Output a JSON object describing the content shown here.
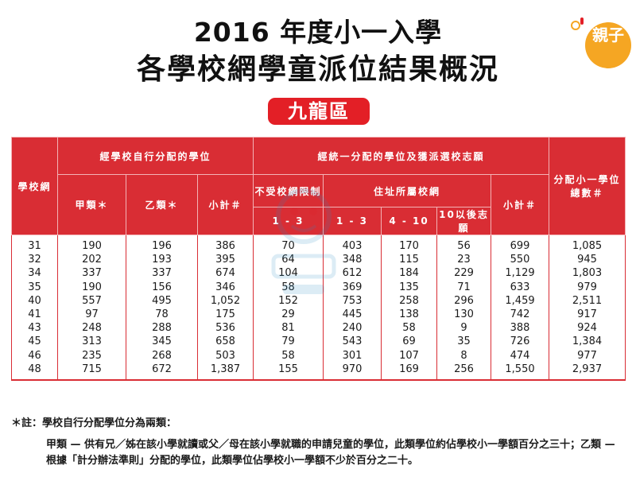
{
  "header": {
    "title_line_1": "2016 年度小一入學",
    "title_line_2": "各學校網學童派位結果概況",
    "district": "九龍區"
  },
  "logo": {
    "text": "親子",
    "icon": "qinzi-logo-icon",
    "color": "#f5a623"
  },
  "colors": {
    "header_red": "#d92d34",
    "badge_red": "#e31f26"
  },
  "table": {
    "headers": {
      "school_net": "學校網",
      "group_school_allocated": "經學校自行分配的學位",
      "group_central": "經統一分配的學位及獲派選校志願",
      "total_allocated": "分配小一學位總數＃",
      "type_a": "甲類＊",
      "type_b": "乙類＊",
      "subtotal_1": "小計＃",
      "unrestricted": "不受校網限制",
      "within_net": "住址所屬校網",
      "subtotal_2": "小計＃",
      "choice_1_3_a": "1 - 3",
      "choice_1_3_b": "1 - 3",
      "choice_4_10": "4 - 10",
      "choice_10_plus": "10以後志願"
    },
    "rows": [
      [
        "31",
        "190",
        "196",
        "386",
        "70",
        "403",
        "170",
        "56",
        "699",
        "1,085"
      ],
      [
        "32",
        "202",
        "193",
        "395",
        "64",
        "348",
        "115",
        "23",
        "550",
        "945"
      ],
      [
        "34",
        "337",
        "337",
        "674",
        "104",
        "612",
        "184",
        "229",
        "1,129",
        "1,803"
      ],
      [
        "35",
        "190",
        "156",
        "346",
        "58",
        "369",
        "135",
        "71",
        "633",
        "979"
      ],
      [
        "40",
        "557",
        "495",
        "1,052",
        "152",
        "753",
        "258",
        "296",
        "1,459",
        "2,511"
      ],
      [
        "41",
        "97",
        "78",
        "175",
        "29",
        "445",
        "138",
        "130",
        "742",
        "917"
      ],
      [
        "43",
        "248",
        "288",
        "536",
        "81",
        "240",
        "58",
        "9",
        "388",
        "924"
      ],
      [
        "45",
        "313",
        "345",
        "658",
        "79",
        "543",
        "69",
        "35",
        "726",
        "1,384"
      ],
      [
        "46",
        "235",
        "268",
        "503",
        "58",
        "301",
        "107",
        "8",
        "474",
        "977"
      ],
      [
        "48",
        "715",
        "672",
        "1,387",
        "155",
        "970",
        "169",
        "256",
        "1,550",
        "2,937"
      ]
    ]
  },
  "notes": {
    "heading": "＊註：學校自行分配學位分為兩類：",
    "body": "甲類 — 供有兄／姊在該小學就讀或父／母在該小學就職的申請兒童的學位，此類學位約佔學校小一學額百分之三十；乙類 — 根據「計分辦法準則」分配的學位，此類學位佔學校小一學額不少於百分之二十。"
  }
}
